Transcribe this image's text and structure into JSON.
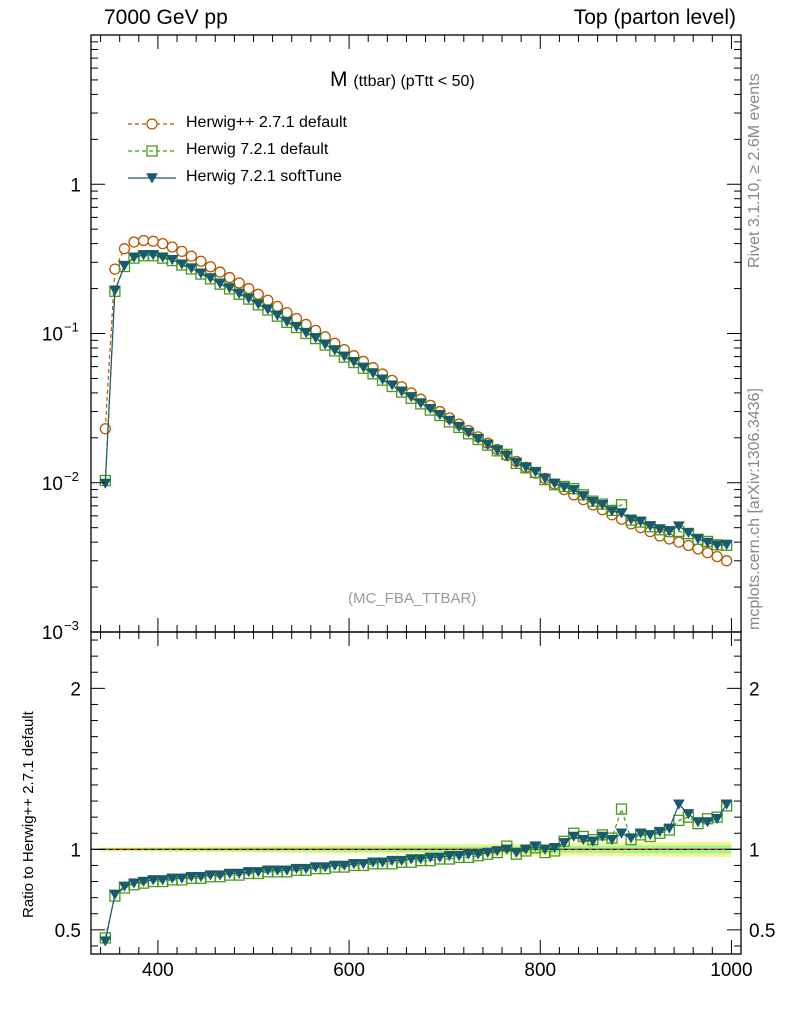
{
  "header": {
    "left": "7000 GeV pp",
    "right": "Top (parton level)"
  },
  "side_text": {
    "rivet": "Rivet 3.1.10, ≥ 2.6M events",
    "mcplots": "mcplots.cern.ch [arXiv:1306.3436]"
  },
  "chart_data": {
    "type": "line",
    "title_main": "M",
    "title_sub": "(ttbar) (pTtt < 50)",
    "watermark": "(MC_FBA_TTBAR)",
    "xlim": [
      330,
      1010
    ],
    "ylim_main": [
      0.001,
      10
    ],
    "yscale_main": "log",
    "ylim_ratio": [
      0.35,
      2.35
    ],
    "ylabel_ratio": "Ratio to Herwig++ 2.7.1 default",
    "x_ticks": [
      400,
      600,
      800,
      1000
    ],
    "x_tick_labels": [
      "400",
      "600",
      "800",
      "1000"
    ],
    "y_ticks_main": [
      {
        "value": 1,
        "base": "1",
        "exp": ""
      },
      {
        "value": 0.1,
        "base": "10",
        "exp": "−1"
      },
      {
        "value": 0.01,
        "base": "10",
        "exp": "−2"
      },
      {
        "value": 0.001,
        "base": "10",
        "exp": "−3"
      }
    ],
    "y_ticks_ratio": [
      {
        "value": 0.5,
        "label": "0.5"
      },
      {
        "value": 1,
        "label": "1"
      },
      {
        "value": 2,
        "label": "2"
      }
    ],
    "x": [
      345,
      355,
      365,
      375,
      385,
      395,
      405,
      415,
      425,
      435,
      445,
      455,
      465,
      475,
      485,
      495,
      505,
      515,
      525,
      535,
      545,
      555,
      565,
      575,
      585,
      595,
      605,
      615,
      625,
      635,
      645,
      655,
      665,
      675,
      685,
      695,
      705,
      715,
      725,
      735,
      745,
      755,
      765,
      775,
      785,
      795,
      805,
      815,
      825,
      835,
      845,
      855,
      865,
      875,
      885,
      895,
      905,
      915,
      925,
      935,
      945,
      955,
      965,
      975,
      985,
      995
    ],
    "series": [
      {
        "name": "Herwig++ 2.7.1 default",
        "color": "#b35900",
        "marker": "circle-open",
        "linestyle": "dashed",
        "values": [
          0.023,
          0.27,
          0.37,
          0.41,
          0.42,
          0.415,
          0.4,
          0.38,
          0.355,
          0.33,
          0.305,
          0.28,
          0.258,
          0.237,
          0.218,
          0.2,
          0.183,
          0.167,
          0.152,
          0.138,
          0.126,
          0.115,
          0.105,
          0.095,
          0.086,
          0.078,
          0.071,
          0.065,
          0.059,
          0.0535,
          0.0485,
          0.044,
          0.04,
          0.0363,
          0.033,
          0.03,
          0.0272,
          0.0247,
          0.0224,
          0.0203,
          0.0184,
          0.0167,
          0.0152,
          0.0139,
          0.0127,
          0.0116,
          0.0107,
          0.0098,
          0.009,
          0.0083,
          0.0077,
          0.0071,
          0.0066,
          0.0061,
          0.0057,
          0.0053,
          0.005,
          0.0047,
          0.0044,
          0.0042,
          0.004,
          0.0038,
          0.0036,
          0.0034,
          0.0032,
          0.003
        ]
      },
      {
        "name": "Herwig 7.2.1 default",
        "color": "#4a9a1a",
        "marker": "square-open",
        "linestyle": "dashed",
        "ratio": [
          0.45,
          0.71,
          0.76,
          0.78,
          0.79,
          0.8,
          0.8,
          0.81,
          0.81,
          0.82,
          0.82,
          0.83,
          0.83,
          0.84,
          0.84,
          0.85,
          0.85,
          0.86,
          0.86,
          0.86,
          0.87,
          0.87,
          0.88,
          0.88,
          0.89,
          0.89,
          0.9,
          0.9,
          0.91,
          0.91,
          0.91,
          0.92,
          0.92,
          0.93,
          0.93,
          0.94,
          0.94,
          0.95,
          0.95,
          0.96,
          0.97,
          0.98,
          1.02,
          0.97,
          0.99,
          1.01,
          0.98,
          0.99,
          1.05,
          1.1,
          1.08,
          1.06,
          1.09,
          1.07,
          1.25,
          1.06,
          1.09,
          1.08,
          1.1,
          1.12,
          1.18,
          1.2,
          1.16,
          1.19,
          1.2,
          1.27
        ]
      },
      {
        "name": "Herwig 7.2.1 softTune",
        "color": "#1a5a6e",
        "marker": "triangle-down-filled",
        "linestyle": "solid",
        "ratio": [
          0.43,
          0.72,
          0.77,
          0.79,
          0.8,
          0.81,
          0.81,
          0.82,
          0.82,
          0.83,
          0.83,
          0.84,
          0.84,
          0.85,
          0.85,
          0.86,
          0.86,
          0.87,
          0.87,
          0.87,
          0.88,
          0.88,
          0.89,
          0.89,
          0.9,
          0.9,
          0.91,
          0.91,
          0.92,
          0.92,
          0.93,
          0.93,
          0.94,
          0.94,
          0.95,
          0.95,
          0.96,
          0.96,
          0.97,
          0.97,
          0.98,
          0.99,
          1.0,
          0.98,
          1.0,
          1.02,
          1.0,
          1.01,
          1.04,
          1.08,
          1.06,
          1.05,
          1.08,
          1.06,
          1.1,
          1.07,
          1.1,
          1.09,
          1.11,
          1.13,
          1.28,
          1.22,
          1.17,
          1.17,
          1.19,
          1.28
        ]
      }
    ],
    "band_colors": {
      "outer": "#f5f58a",
      "inner": "#a6f0a0"
    }
  }
}
